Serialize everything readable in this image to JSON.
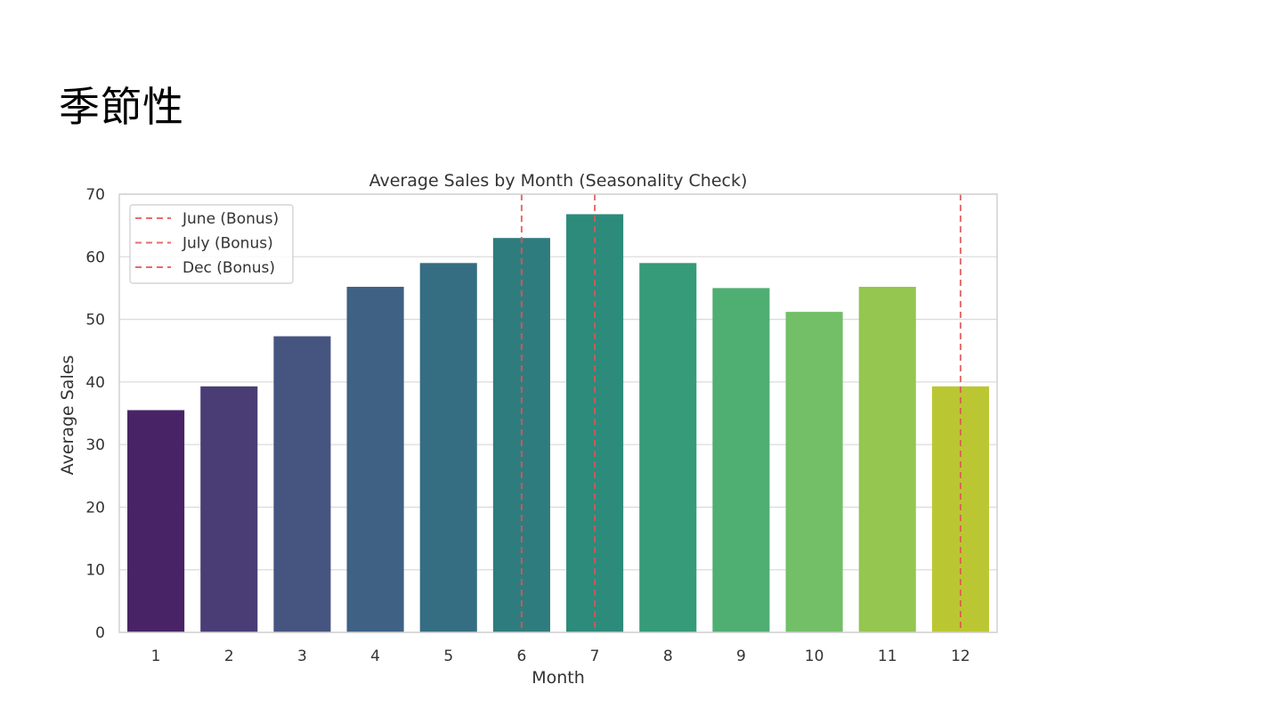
{
  "slide": {
    "title": "季節性"
  },
  "chart_data": {
    "type": "bar",
    "title": "Average Sales by Month (Seasonality Check)",
    "xlabel": "Month",
    "ylabel": "Average Sales",
    "ylim": [
      0,
      70
    ],
    "yticks": [
      "0",
      "10",
      "20",
      "30",
      "40",
      "50",
      "60",
      "70"
    ],
    "grid": true,
    "categories": [
      "1",
      "2",
      "3",
      "4",
      "5",
      "6",
      "7",
      "8",
      "9",
      "10",
      "11",
      "12"
    ],
    "values": [
      35.5,
      39.3,
      47.3,
      55.2,
      59.0,
      63.0,
      66.8,
      59.0,
      55.0,
      51.2,
      55.2,
      39.3
    ],
    "colors": [
      "#482466",
      "#4a3d75",
      "#465480",
      "#3e6184",
      "#356e82",
      "#2f7c7e",
      "#2c8b7b",
      "#359b78",
      "#4fae72",
      "#72bf67",
      "#94c650",
      "#bbc732"
    ],
    "reference_lines": [
      {
        "category": "6",
        "label": "June (Bonus)",
        "color": "#e05555"
      },
      {
        "category": "7",
        "label": "July (Bonus)",
        "color": "#e05555"
      },
      {
        "category": "12",
        "label": "Dec (Bonus)",
        "color": "#e05555"
      }
    ],
    "legend": {
      "position": "top-left"
    }
  }
}
